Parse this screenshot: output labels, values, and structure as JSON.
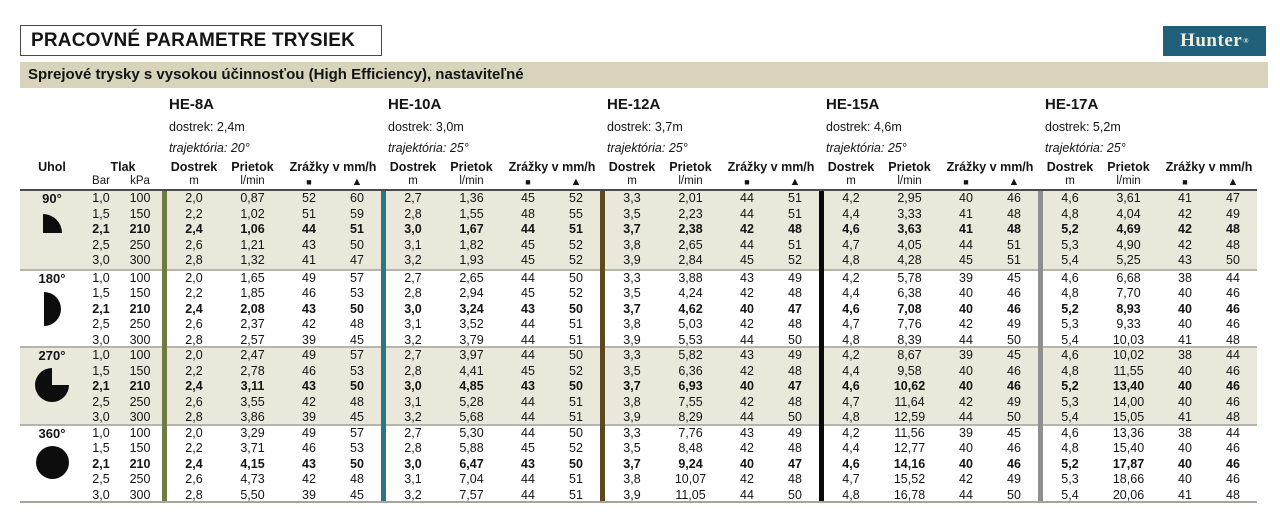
{
  "page_title": "PRACOVNÉ PARAMETRE TRYSIEK",
  "subtitle": "Sprejové trysky s vysokou účinnosťou (High Efficiency), nastaviteľné",
  "brand": {
    "name": "Hunter",
    "registered": "®",
    "bg_color": "#21607b",
    "fg_color": "#f3edd8"
  },
  "colors": {
    "subtitle_band": "#d8d3bb",
    "group_beige": "#eae8da",
    "group_white": "#ffffff",
    "divider": "#b6b4ac",
    "header_line": "#4a4a4a"
  },
  "columns": {
    "uhol": "Uhol",
    "tlak": "Tlak",
    "bar": "Bar",
    "kpa": "kPa",
    "dostrek": "Dostrek",
    "dostrek_unit": "m",
    "prietok": "Prietok",
    "prietok_unit": "l/min",
    "zrazky": "Zrážky v mm/h",
    "square": "■",
    "triangle": "▲"
  },
  "nozzles": [
    {
      "name": "HE-8A",
      "dostrek": "dostrek: 2,4m",
      "trajektoria": "trajektória: 20°",
      "bar_color": "#6e7c44"
    },
    {
      "name": "HE-10A",
      "dostrek": "dostrek: 3,0m",
      "trajektoria": "trajektória: 25°",
      "bar_color": "#2e7583"
    },
    {
      "name": "HE-12A",
      "dostrek": "dostrek: 3,7m",
      "trajektoria": "trajektória: 25°",
      "bar_color": "#5d471f"
    },
    {
      "name": "HE-15A",
      "dostrek": "dostrek: 4,6m",
      "trajektoria": "trajektória: 25°",
      "bar_color": "#0a0a0a"
    },
    {
      "name": "HE-17A",
      "dostrek": "dostrek: 5,2m",
      "trajektoria": "trajektória: 25°",
      "bar_color": "#8f8f8f"
    }
  ],
  "groups": [
    {
      "angle": "90°",
      "icon": "quarter-circle",
      "rows": [
        {
          "bar": "1,0",
          "kpa": "100",
          "bold": false,
          "values": [
            [
              "2,0",
              "0,87",
              "52",
              "60"
            ],
            [
              "2,7",
              "1,36",
              "45",
              "52"
            ],
            [
              "3,3",
              "2,01",
              "44",
              "51"
            ],
            [
              "4,2",
              "2,95",
              "40",
              "46"
            ],
            [
              "4,6",
              "3,61",
              "41",
              "47"
            ]
          ]
        },
        {
          "bar": "1,5",
          "kpa": "150",
          "bold": false,
          "values": [
            [
              "2,2",
              "1,02",
              "51",
              "59"
            ],
            [
              "2,8",
              "1,55",
              "48",
              "55"
            ],
            [
              "3,5",
              "2,23",
              "44",
              "51"
            ],
            [
              "4,4",
              "3,33",
              "41",
              "48"
            ],
            [
              "4,8",
              "4,04",
              "42",
              "49"
            ]
          ]
        },
        {
          "bar": "2,1",
          "kpa": "210",
          "bold": true,
          "values": [
            [
              "2,4",
              "1,06",
              "44",
              "51"
            ],
            [
              "3,0",
              "1,67",
              "44",
              "51"
            ],
            [
              "3,7",
              "2,38",
              "42",
              "48"
            ],
            [
              "4,6",
              "3,63",
              "41",
              "48"
            ],
            [
              "5,2",
              "4,69",
              "42",
              "48"
            ]
          ]
        },
        {
          "bar": "2,5",
          "kpa": "250",
          "bold": false,
          "values": [
            [
              "2,6",
              "1,21",
              "43",
              "50"
            ],
            [
              "3,1",
              "1,82",
              "45",
              "52"
            ],
            [
              "3,8",
              "2,65",
              "44",
              "51"
            ],
            [
              "4,7",
              "4,05",
              "44",
              "51"
            ],
            [
              "5,3",
              "4,90",
              "42",
              "48"
            ]
          ]
        },
        {
          "bar": "3,0",
          "kpa": "300",
          "bold": false,
          "values": [
            [
              "2,8",
              "1,32",
              "41",
              "47"
            ],
            [
              "3,2",
              "1,93",
              "45",
              "52"
            ],
            [
              "3,9",
              "2,84",
              "45",
              "52"
            ],
            [
              "4,8",
              "4,28",
              "45",
              "51"
            ],
            [
              "5,4",
              "5,25",
              "43",
              "50"
            ]
          ]
        }
      ]
    },
    {
      "angle": "180°",
      "icon": "half-circle",
      "rows": [
        {
          "bar": "1,0",
          "kpa": "100",
          "bold": false,
          "values": [
            [
              "2,0",
              "1,65",
              "49",
              "57"
            ],
            [
              "2,7",
              "2,65",
              "44",
              "50"
            ],
            [
              "3,3",
              "3,88",
              "43",
              "49"
            ],
            [
              "4,2",
              "5,78",
              "39",
              "45"
            ],
            [
              "4,6",
              "6,68",
              "38",
              "44"
            ]
          ]
        },
        {
          "bar": "1,5",
          "kpa": "150",
          "bold": false,
          "values": [
            [
              "2,2",
              "1,85",
              "46",
              "53"
            ],
            [
              "2,8",
              "2,94",
              "45",
              "52"
            ],
            [
              "3,5",
              "4,24",
              "42",
              "48"
            ],
            [
              "4,4",
              "6,38",
              "40",
              "46"
            ],
            [
              "4,8",
              "7,70",
              "40",
              "46"
            ]
          ]
        },
        {
          "bar": "2,1",
          "kpa": "210",
          "bold": true,
          "values": [
            [
              "2,4",
              "2,08",
              "43",
              "50"
            ],
            [
              "3,0",
              "3,24",
              "43",
              "50"
            ],
            [
              "3,7",
              "4,62",
              "40",
              "47"
            ],
            [
              "4,6",
              "7,08",
              "40",
              "46"
            ],
            [
              "5,2",
              "8,93",
              "40",
              "46"
            ]
          ]
        },
        {
          "bar": "2,5",
          "kpa": "250",
          "bold": false,
          "values": [
            [
              "2,6",
              "2,37",
              "42",
              "48"
            ],
            [
              "3,1",
              "3,52",
              "44",
              "51"
            ],
            [
              "3,8",
              "5,03",
              "42",
              "48"
            ],
            [
              "4,7",
              "7,76",
              "42",
              "49"
            ],
            [
              "5,3",
              "9,33",
              "40",
              "46"
            ]
          ]
        },
        {
          "bar": "3,0",
          "kpa": "300",
          "bold": false,
          "values": [
            [
              "2,8",
              "2,57",
              "39",
              "45"
            ],
            [
              "3,2",
              "3,79",
              "44",
              "51"
            ],
            [
              "3,9",
              "5,53",
              "44",
              "50"
            ],
            [
              "4,8",
              "8,39",
              "44",
              "50"
            ],
            [
              "5,4",
              "10,03",
              "41",
              "48"
            ]
          ]
        }
      ]
    },
    {
      "angle": "270°",
      "icon": "three-quarter-circle",
      "rows": [
        {
          "bar": "1,0",
          "kpa": "100",
          "bold": false,
          "values": [
            [
              "2,0",
              "2,47",
              "49",
              "57"
            ],
            [
              "2,7",
              "3,97",
              "44",
              "50"
            ],
            [
              "3,3",
              "5,82",
              "43",
              "49"
            ],
            [
              "4,2",
              "8,67",
              "39",
              "45"
            ],
            [
              "4,6",
              "10,02",
              "38",
              "44"
            ]
          ]
        },
        {
          "bar": "1,5",
          "kpa": "150",
          "bold": false,
          "values": [
            [
              "2,2",
              "2,78",
              "46",
              "53"
            ],
            [
              "2,8",
              "4,41",
              "45",
              "52"
            ],
            [
              "3,5",
              "6,36",
              "42",
              "48"
            ],
            [
              "4,4",
              "9,58",
              "40",
              "46"
            ],
            [
              "4,8",
              "11,55",
              "40",
              "46"
            ]
          ]
        },
        {
          "bar": "2,1",
          "kpa": "210",
          "bold": true,
          "values": [
            [
              "2,4",
              "3,11",
              "43",
              "50"
            ],
            [
              "3,0",
              "4,85",
              "43",
              "50"
            ],
            [
              "3,7",
              "6,93",
              "40",
              "47"
            ],
            [
              "4,6",
              "10,62",
              "40",
              "46"
            ],
            [
              "5,2",
              "13,40",
              "40",
              "46"
            ]
          ]
        },
        {
          "bar": "2,5",
          "kpa": "250",
          "bold": false,
          "values": [
            [
              "2,6",
              "3,55",
              "42",
              "48"
            ],
            [
              "3,1",
              "5,28",
              "44",
              "51"
            ],
            [
              "3,8",
              "7,55",
              "42",
              "48"
            ],
            [
              "4,7",
              "11,64",
              "42",
              "49"
            ],
            [
              "5,3",
              "14,00",
              "40",
              "46"
            ]
          ]
        },
        {
          "bar": "3,0",
          "kpa": "300",
          "bold": false,
          "values": [
            [
              "2,8",
              "3,86",
              "39",
              "45"
            ],
            [
              "3,2",
              "5,68",
              "44",
              "51"
            ],
            [
              "3,9",
              "8,29",
              "44",
              "50"
            ],
            [
              "4,8",
              "12,59",
              "44",
              "50"
            ],
            [
              "5,4",
              "15,05",
              "41",
              "48"
            ]
          ]
        }
      ]
    },
    {
      "angle": "360°",
      "icon": "full-circle",
      "rows": [
        {
          "bar": "1,0",
          "kpa": "100",
          "bold": false,
          "values": [
            [
              "2,0",
              "3,29",
              "49",
              "57"
            ],
            [
              "2,7",
              "5,30",
              "44",
              "50"
            ],
            [
              "3,3",
              "7,76",
              "43",
              "49"
            ],
            [
              "4,2",
              "11,56",
              "39",
              "45"
            ],
            [
              "4,6",
              "13,36",
              "38",
              "44"
            ]
          ]
        },
        {
          "bar": "1,5",
          "kpa": "150",
          "bold": false,
          "values": [
            [
              "2,2",
              "3,71",
              "46",
              "53"
            ],
            [
              "2,8",
              "5,88",
              "45",
              "52"
            ],
            [
              "3,5",
              "8,48",
              "42",
              "48"
            ],
            [
              "4,4",
              "12,77",
              "40",
              "46"
            ],
            [
              "4,8",
              "15,40",
              "40",
              "46"
            ]
          ]
        },
        {
          "bar": "2,1",
          "kpa": "210",
          "bold": true,
          "values": [
            [
              "2,4",
              "4,15",
              "43",
              "50"
            ],
            [
              "3,0",
              "6,47",
              "43",
              "50"
            ],
            [
              "3,7",
              "9,24",
              "40",
              "47"
            ],
            [
              "4,6",
              "14,16",
              "40",
              "46"
            ],
            [
              "5,2",
              "17,87",
              "40",
              "46"
            ]
          ]
        },
        {
          "bar": "2,5",
          "kpa": "250",
          "bold": false,
          "values": [
            [
              "2,6",
              "4,73",
              "42",
              "48"
            ],
            [
              "3,1",
              "7,04",
              "44",
              "51"
            ],
            [
              "3,8",
              "10,07",
              "42",
              "48"
            ],
            [
              "4,7",
              "15,52",
              "42",
              "49"
            ],
            [
              "5,3",
              "18,66",
              "40",
              "46"
            ]
          ]
        },
        {
          "bar": "3,0",
          "kpa": "300",
          "bold": false,
          "values": [
            [
              "2,8",
              "5,50",
              "39",
              "45"
            ],
            [
              "3,2",
              "7,57",
              "44",
              "51"
            ],
            [
              "3,9",
              "11,05",
              "44",
              "50"
            ],
            [
              "4,8",
              "16,78",
              "44",
              "50"
            ],
            [
              "5,4",
              "20,06",
              "41",
              "48"
            ]
          ]
        }
      ]
    }
  ]
}
